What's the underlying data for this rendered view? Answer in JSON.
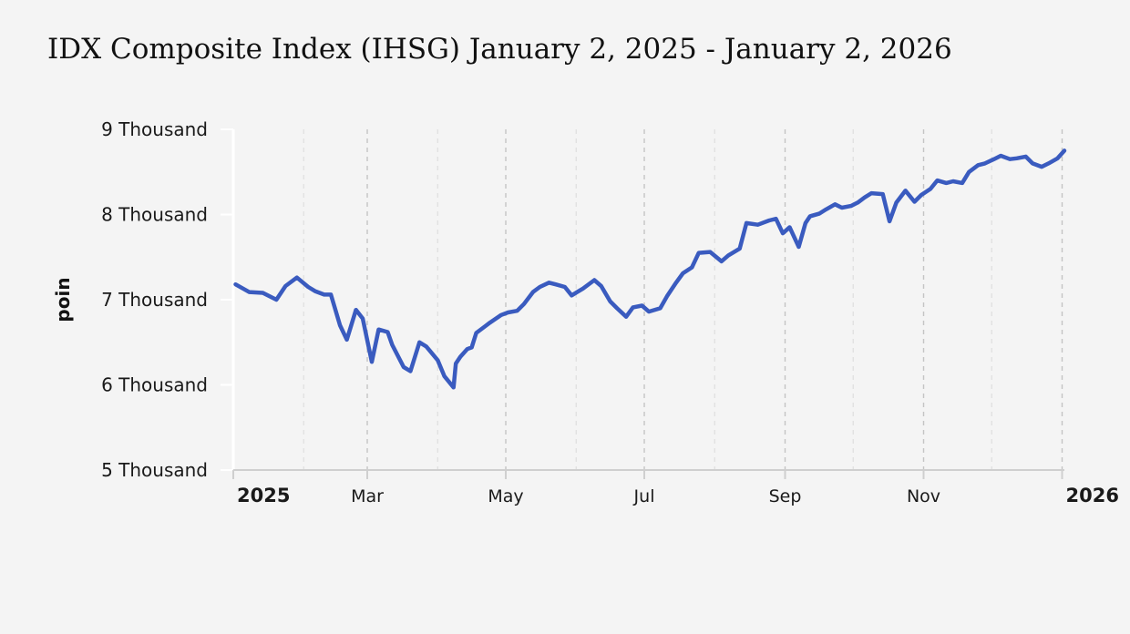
{
  "title": "IDX Composite Index (IHSG) January 2, 2025 - January 2, 2026",
  "chart_data": {
    "type": "line",
    "title": "IDX Composite Index (IHSG) January 2, 2025 - January 2, 2026",
    "xlabel": "",
    "ylabel": "poin",
    "x_range": [
      "2025-01-01",
      "2026-01-02"
    ],
    "ylim": [
      5000,
      9000
    ],
    "y_ticks": [
      {
        "value": 9000,
        "label": "9 Thousand"
      },
      {
        "value": 8000,
        "label": "8 Thousand"
      },
      {
        "value": 7000,
        "label": "7 Thousand"
      },
      {
        "value": 6000,
        "label": "6 Thousand"
      },
      {
        "value": 5000,
        "label": "5 Thousand"
      }
    ],
    "x_ticks": [
      {
        "date": "2025-01-01",
        "label": "2025",
        "bold": true
      },
      {
        "date": "2025-03-01",
        "label": "Mar",
        "bold": false
      },
      {
        "date": "2025-05-01",
        "label": "May",
        "bold": false
      },
      {
        "date": "2025-07-01",
        "label": "Jul",
        "bold": false
      },
      {
        "date": "2025-09-01",
        "label": "Sep",
        "bold": false
      },
      {
        "date": "2025-11-01",
        "label": "Nov",
        "bold": false
      },
      {
        "date": "2026-01-01",
        "label": "2026",
        "bold": true
      }
    ],
    "minor_grid_dates": [
      "2025-02-01",
      "2025-04-01",
      "2025-06-01",
      "2025-08-01",
      "2025-10-01",
      "2025-12-01"
    ],
    "grid": true,
    "line_color": "#3a5bbf",
    "series": [
      {
        "x": [
          "2025-01-02",
          "2025-01-08",
          "2025-01-14",
          "2025-01-20",
          "2025-01-24",
          "2025-01-29",
          "2025-02-03",
          "2025-02-06",
          "2025-02-10",
          "2025-02-13",
          "2025-02-17",
          "2025-02-20",
          "2025-02-24",
          "2025-02-27",
          "2025-03-03",
          "2025-03-06",
          "2025-03-10",
          "2025-03-12",
          "2025-03-17",
          "2025-03-20",
          "2025-03-24",
          "2025-03-27",
          "2025-04-01",
          "2025-04-04",
          "2025-04-08",
          "2025-04-09",
          "2025-04-11",
          "2025-04-14",
          "2025-04-16",
          "2025-04-18",
          "2025-04-22",
          "2025-04-24",
          "2025-04-29",
          "2025-05-02",
          "2025-05-06",
          "2025-05-09",
          "2025-05-13",
          "2025-05-16",
          "2025-05-20",
          "2025-05-23",
          "2025-05-27",
          "2025-05-30",
          "2025-06-04",
          "2025-06-09",
          "2025-06-12",
          "2025-06-16",
          "2025-06-19",
          "2025-06-23",
          "2025-06-26",
          "2025-06-30",
          "2025-07-03",
          "2025-07-08",
          "2025-07-11",
          "2025-07-15",
          "2025-07-18",
          "2025-07-22",
          "2025-07-25",
          "2025-07-30",
          "2025-08-04",
          "2025-08-07",
          "2025-08-12",
          "2025-08-15",
          "2025-08-20",
          "2025-08-25",
          "2025-08-28",
          "2025-08-31",
          "2025-09-03",
          "2025-09-07",
          "2025-09-10",
          "2025-09-12",
          "2025-09-16",
          "2025-09-19",
          "2025-09-23",
          "2025-09-26",
          "2025-09-30",
          "2025-10-03",
          "2025-10-06",
          "2025-10-09",
          "2025-10-14",
          "2025-10-17",
          "2025-10-20",
          "2025-10-24",
          "2025-10-28",
          "2025-10-31",
          "2025-11-04",
          "2025-11-07",
          "2025-11-11",
          "2025-11-14",
          "2025-11-18",
          "2025-11-21",
          "2025-11-25",
          "2025-11-28",
          "2025-12-02",
          "2025-12-05",
          "2025-12-09",
          "2025-12-12",
          "2025-12-16",
          "2025-12-19",
          "2025-12-23",
          "2025-12-26",
          "2025-12-30",
          "2026-01-02"
        ],
        "values": [
          7180,
          7090,
          7080,
          7000,
          7160,
          7260,
          7150,
          7100,
          7060,
          7060,
          6700,
          6530,
          6880,
          6780,
          6270,
          6650,
          6620,
          6470,
          6210,
          6160,
          6500,
          6450,
          6290,
          6100,
          5970,
          6250,
          6330,
          6420,
          6440,
          6610,
          6690,
          6730,
          6820,
          6850,
          6870,
          6950,
          7090,
          7150,
          7200,
          7180,
          7150,
          7050,
          7130,
          7230,
          7160,
          6980,
          6900,
          6800,
          6910,
          6930,
          6860,
          6900,
          7040,
          7200,
          7310,
          7380,
          7550,
          7560,
          7450,
          7520,
          7600,
          7900,
          7880,
          7930,
          7950,
          7780,
          7850,
          7620,
          7900,
          7980,
          8010,
          8060,
          8120,
          8080,
          8100,
          8140,
          8200,
          8250,
          8240,
          7920,
          8140,
          8280,
          8150,
          8230,
          8300,
          8400,
          8370,
          8390,
          8370,
          8500,
          8580,
          8600,
          8650,
          8690,
          8650,
          8660,
          8680,
          8600,
          8560,
          8600,
          8660,
          8750
        ]
      }
    ]
  }
}
